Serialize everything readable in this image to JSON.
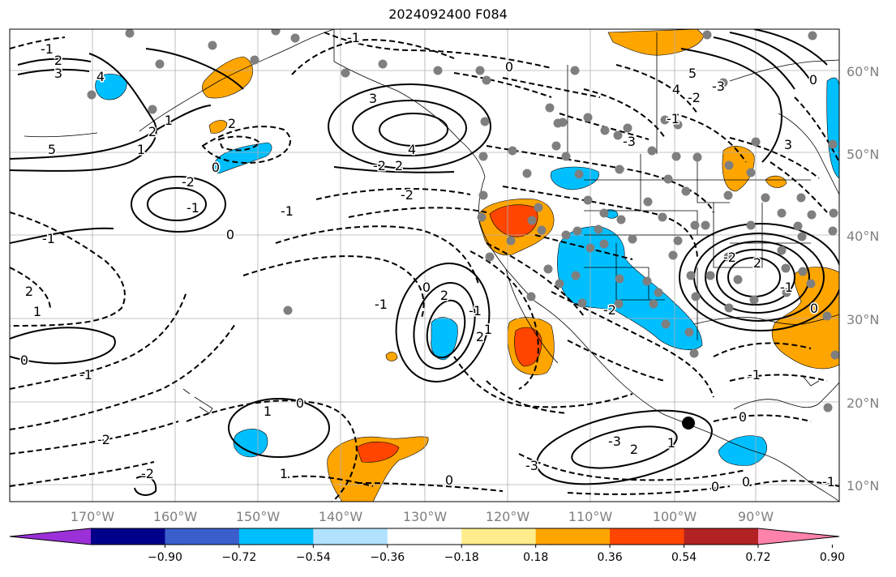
{
  "title": "2024092400 F084",
  "lat_labels": [
    "60°N",
    "50°N",
    "40°N",
    "30°N",
    "20°N",
    "10°N"
  ],
  "lon_labels": [
    "170°W",
    "160°W",
    "150°W",
    "140°W",
    "130°W",
    "120°W",
    "110°W",
    "100°W",
    "90°W"
  ],
  "colorbar": {
    "colors": [
      "#9b30d9",
      "#00008b",
      "#3a5fcd",
      "#00bfff",
      "#b0e2ff",
      "#ffffff",
      "#ffec8b",
      "#ffa500",
      "#ff4500",
      "#b22222",
      "#ff82ab"
    ],
    "tick_labels": [
      "−0.90",
      "−0.72",
      "−0.54",
      "−0.36",
      "−0.18",
      "0.18",
      "0.36",
      "0.54",
      "0.72",
      "0.90"
    ]
  },
  "contour_labels": [
    "-1",
    "2",
    "3",
    "4",
    "5",
    "1",
    "2",
    "-2",
    "-1",
    "1",
    "2",
    "0",
    "3",
    "4",
    "-2",
    "2",
    "-1",
    "0",
    "-2",
    "-1",
    "0",
    "-2",
    "-1",
    "2",
    "1",
    "0",
    "-1",
    "-2",
    "1",
    "0",
    "-2",
    "1",
    "0",
    "2",
    "0",
    "-1",
    "2",
    "1",
    "-1",
    "-2",
    "-3",
    "-1",
    "-2",
    "-3",
    "0",
    "5",
    "4",
    "3",
    "2",
    "-2",
    "-1",
    "0",
    "-3",
    "-3",
    "0",
    "1",
    "2",
    "0",
    "-1",
    "0",
    "-1"
  ]
}
